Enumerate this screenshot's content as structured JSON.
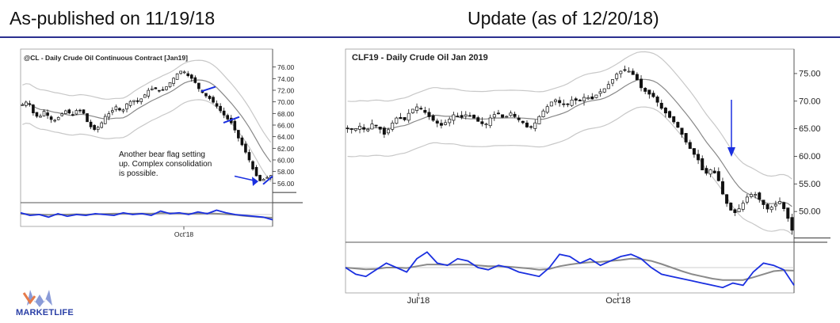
{
  "header": {
    "left": "As-published on 11/19/18",
    "right": "Update (as of 12/20/18)"
  },
  "logo": {
    "text": "MARKETLIFE"
  },
  "chart_data": [
    {
      "type": "candlestick",
      "title": "@CL - Daily  Crude Oil Continuous Contract [Jan19]",
      "ylim": [
        54,
        78
      ],
      "yticks": [
        "76.00",
        "74.00",
        "72.00",
        "70.00",
        "68.00",
        "66.00",
        "64.00",
        "62.00",
        "60.00",
        "58.00",
        "56.00"
      ],
      "xticks": [
        "Oct'18"
      ],
      "annotation": [
        "Another bear flag setting",
        "up. Complex consolidation",
        "is possible."
      ],
      "price_path": [
        69.5,
        70.2,
        68,
        67.2,
        68.5,
        67,
        66.8,
        67.8,
        68.6,
        67.5,
        68.8,
        68.2,
        66,
        65.2,
        65.8,
        67.5,
        68.2,
        69.2,
        68.2,
        69.8,
        70.3,
        70,
        71,
        72.2,
        72.3,
        71.8,
        72.5,
        73.6,
        74.8,
        75.5,
        74.5,
        73.8,
        72.2,
        71.2,
        70.5,
        69.5,
        68.3,
        67.2,
        66.2,
        64,
        62.2,
        60.2,
        57.8,
        56.4,
        56.8,
        57.3
      ],
      "bands_offset": 3.4,
      "oscillator": {
        "blue": [
          0.6,
          0.45,
          0.5,
          0.35,
          0.55,
          0.4,
          0.5,
          0.45,
          0.55,
          0.5,
          0.45,
          0.6,
          0.5,
          0.55,
          0.45,
          0.7,
          0.55,
          0.6,
          0.5,
          0.65,
          0.55,
          0.75,
          0.6,
          0.5,
          0.45,
          0.4,
          0.35,
          0.2
        ],
        "gray": [
          0.55,
          0.52,
          0.5,
          0.48,
          0.5,
          0.5,
          0.52,
          0.5,
          0.52,
          0.53,
          0.55,
          0.55,
          0.55,
          0.56,
          0.55,
          0.58,
          0.58,
          0.57,
          0.55,
          0.56,
          0.57,
          0.55,
          0.52,
          0.48,
          0.42,
          0.38,
          0.34,
          0.32
        ]
      }
    },
    {
      "type": "candlestick",
      "title": "CLF19 - Daily  Crude Oil Jan 2019",
      "ylim": [
        45,
        78
      ],
      "yticks": [
        "75.00",
        "70.00",
        "65.00",
        "60.00",
        "55.00",
        "50.00"
      ],
      "xticks": [
        "Jul'18",
        "Oct'18"
      ],
      "price_path": [
        65,
        64.8,
        65.5,
        64.5,
        66,
        65.2,
        63.8,
        65.8,
        67.2,
        66.4,
        68.2,
        69,
        68.4,
        67.2,
        66.2,
        65.6,
        66.4,
        67.6,
        66.9,
        67.6,
        67.1,
        66.2,
        65.6,
        67.3,
        67.9,
        66.8,
        67.9,
        66.9,
        66.1,
        64.9,
        66.1,
        67.9,
        69.1,
        70.4,
        69.6,
        69.3,
        70.4,
        69.9,
        70.9,
        70.3,
        71.4,
        72.2,
        73.4,
        74.9,
        75.7,
        75.4,
        74.4,
        72.2,
        71.4,
        70.7,
        68.9,
        67.6,
        66.4,
        64.9,
        62.7,
        60.9,
        59.4,
        56.6,
        57.6,
        56.6,
        52.9,
        50.4,
        49.7,
        51.2,
        52.9,
        53.3,
        51.9,
        50.4,
        50.9,
        51.9,
        49.9,
        46.6
      ],
      "bands_offset": 5.0,
      "arrow_at_index": 57,
      "oscillator": {
        "blue": [
          0.5,
          0.35,
          0.3,
          0.45,
          0.6,
          0.5,
          0.4,
          0.7,
          0.85,
          0.6,
          0.55,
          0.7,
          0.65,
          0.5,
          0.45,
          0.55,
          0.5,
          0.4,
          0.35,
          0.3,
          0.5,
          0.8,
          0.75,
          0.6,
          0.7,
          0.55,
          0.65,
          0.75,
          0.8,
          0.7,
          0.5,
          0.35,
          0.3,
          0.25,
          0.2,
          0.15,
          0.1,
          0.05,
          0.15,
          0.1,
          0.4,
          0.6,
          0.55,
          0.45,
          0.1
        ],
        "gray": [
          0.5,
          0.48,
          0.46,
          0.47,
          0.5,
          0.5,
          0.49,
          0.53,
          0.57,
          0.57,
          0.56,
          0.57,
          0.57,
          0.55,
          0.53,
          0.53,
          0.52,
          0.5,
          0.48,
          0.45,
          0.47,
          0.53,
          0.57,
          0.6,
          0.62,
          0.63,
          0.65,
          0.67,
          0.7,
          0.69,
          0.65,
          0.58,
          0.5,
          0.42,
          0.35,
          0.3,
          0.25,
          0.22,
          0.22,
          0.22,
          0.28,
          0.35,
          0.42,
          0.44,
          0.43
        ]
      }
    }
  ]
}
